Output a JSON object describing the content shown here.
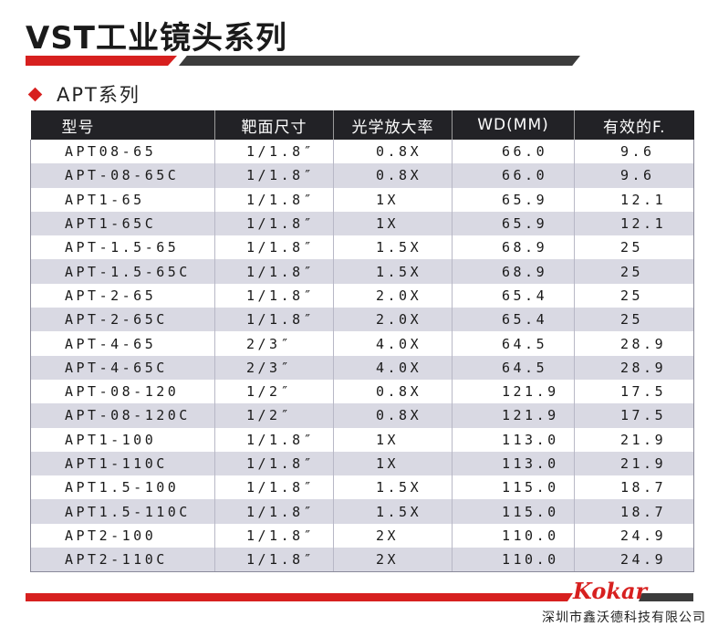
{
  "title": "VST工业镜头系列",
  "subtitle": "APT系列",
  "table": {
    "headers": [
      "型号",
      "靶面尺寸",
      "光学放大率",
      "WD(MM)",
      "有效的F."
    ],
    "rows": [
      [
        "APT08-65",
        "1/1.8″",
        "0.8X",
        "66.0",
        "9.6"
      ],
      [
        "APT-08-65C",
        "1/1.8″",
        "0.8X",
        "66.0",
        "9.6"
      ],
      [
        "APT1-65",
        "1/1.8″",
        "1X",
        "65.9",
        "12.1"
      ],
      [
        "APT1-65C",
        "1/1.8″",
        "1X",
        "65.9",
        "12.1"
      ],
      [
        "APT-1.5-65",
        "1/1.8″",
        "1.5X",
        "68.9",
        "25"
      ],
      [
        "APT-1.5-65C",
        "1/1.8″",
        "1.5X",
        "68.9",
        "25"
      ],
      [
        "APT-2-65",
        "1/1.8″",
        "2.0X",
        "65.4",
        "25"
      ],
      [
        "APT-2-65C",
        "1/1.8″",
        "2.0X",
        "65.4",
        "25"
      ],
      [
        "APT-4-65",
        "2/3″",
        "4.0X",
        "64.5",
        "28.9"
      ],
      [
        "APT-4-65C",
        "2/3″",
        "4.0X",
        "64.5",
        "28.9"
      ],
      [
        "APT-08-120",
        "1/2″",
        "0.8X",
        "121.9",
        "17.5"
      ],
      [
        "APT-08-120C",
        "1/2″",
        "0.8X",
        "121.9",
        "17.5"
      ],
      [
        "APT1-100",
        "1/1.8″",
        "1X",
        "113.0",
        "21.9"
      ],
      [
        "APT1-110C",
        "1/1.8″",
        "1X",
        "113.0",
        "21.9"
      ],
      [
        "APT1.5-100",
        "1/1.8″",
        "1.5X",
        "115.0",
        "18.7"
      ],
      [
        "APT1.5-110C",
        "1/1.8″",
        "1.5X",
        "115.0",
        "18.7"
      ],
      [
        "APT2-100",
        "1/1.8″",
        "2X",
        "110.0",
        "24.9"
      ],
      [
        "APT2-110C",
        "1/1.8″",
        "2X",
        "110.0",
        "24.9"
      ]
    ]
  },
  "footer": {
    "logo": "Kokar",
    "company": "深圳市鑫沃德科技有限公司"
  },
  "colors": {
    "accent": "#d7201f",
    "header_bg": "#222226",
    "stripe": "#d9d9e3"
  }
}
